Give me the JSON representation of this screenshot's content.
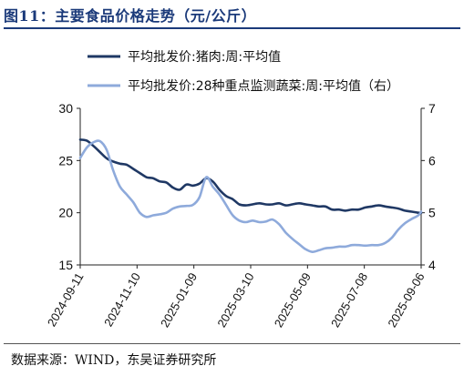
{
  "header": {
    "title": "图11：主要食品价格走势（元/公斤）"
  },
  "footer": {
    "source": "数据来源：WIND，东吴证券研究所"
  },
  "chart_data": {
    "type": "line",
    "x_tick_labels": [
      "2024-09-11",
      "2024-11-10",
      "2025-01-09",
      "2025-03-10",
      "2025-05-09",
      "2025-07-08",
      "2025-09-06"
    ],
    "x_start": "2024-09-11",
    "x_end": "2025-09-06",
    "y_left": {
      "min": 15,
      "max": 30,
      "ticks": [
        15,
        20,
        25,
        30
      ]
    },
    "y_right": {
      "min": 4,
      "max": 7,
      "ticks": [
        4,
        5,
        6,
        7
      ]
    },
    "legend_position": "top-left",
    "series": [
      {
        "name": "平均批发价:猪肉:周:平均值",
        "axis": "left",
        "color": "#1f3864",
        "points": [
          [
            "2024-09-11",
            27.0
          ],
          [
            "2024-09-18",
            26.9
          ],
          [
            "2024-09-25",
            26.4
          ],
          [
            "2024-10-02",
            25.8
          ],
          [
            "2024-10-09",
            25.2
          ],
          [
            "2024-10-16",
            24.9
          ],
          [
            "2024-10-23",
            24.7
          ],
          [
            "2024-10-30",
            24.6
          ],
          [
            "2024-11-06",
            24.2
          ],
          [
            "2024-11-13",
            23.8
          ],
          [
            "2024-11-20",
            23.4
          ],
          [
            "2024-11-27",
            23.3
          ],
          [
            "2024-12-04",
            23.0
          ],
          [
            "2024-12-11",
            22.9
          ],
          [
            "2024-12-18",
            22.4
          ],
          [
            "2024-12-25",
            22.2
          ],
          [
            "2025-01-01",
            22.7
          ],
          [
            "2025-01-08",
            22.6
          ],
          [
            "2025-01-15",
            22.8
          ],
          [
            "2025-01-22",
            23.3
          ],
          [
            "2025-01-29",
            23.0
          ],
          [
            "2025-02-05",
            22.2
          ],
          [
            "2025-02-12",
            21.6
          ],
          [
            "2025-02-19",
            21.3
          ],
          [
            "2025-02-26",
            20.8
          ],
          [
            "2025-03-05",
            20.7
          ],
          [
            "2025-03-12",
            20.8
          ],
          [
            "2025-03-19",
            20.9
          ],
          [
            "2025-03-26",
            20.8
          ],
          [
            "2025-04-02",
            20.8
          ],
          [
            "2025-04-09",
            20.9
          ],
          [
            "2025-04-16",
            20.7
          ],
          [
            "2025-04-23",
            20.8
          ],
          [
            "2025-04-30",
            20.9
          ],
          [
            "2025-05-07",
            20.8
          ],
          [
            "2025-05-14",
            20.7
          ],
          [
            "2025-05-21",
            20.6
          ],
          [
            "2025-05-28",
            20.6
          ],
          [
            "2025-06-04",
            20.3
          ],
          [
            "2025-06-11",
            20.3
          ],
          [
            "2025-06-18",
            20.2
          ],
          [
            "2025-06-25",
            20.3
          ],
          [
            "2025-07-02",
            20.3
          ],
          [
            "2025-07-09",
            20.5
          ],
          [
            "2025-07-16",
            20.6
          ],
          [
            "2025-07-23",
            20.7
          ],
          [
            "2025-07-30",
            20.6
          ],
          [
            "2025-08-06",
            20.5
          ],
          [
            "2025-08-13",
            20.4
          ],
          [
            "2025-08-20",
            20.2
          ],
          [
            "2025-08-27",
            20.1
          ],
          [
            "2025-09-03",
            20.0
          ],
          [
            "2025-09-06",
            20.0
          ]
        ]
      },
      {
        "name": "平均批发价:28种重点监测蔬菜:周:平均值（右）",
        "axis": "right",
        "color": "#8eaadb",
        "points": [
          [
            "2024-09-11",
            6.05
          ],
          [
            "2024-09-18",
            6.25
          ],
          [
            "2024-09-25",
            6.35
          ],
          [
            "2024-10-02",
            6.37
          ],
          [
            "2024-10-09",
            6.2
          ],
          [
            "2024-10-16",
            5.8
          ],
          [
            "2024-10-23",
            5.5
          ],
          [
            "2024-10-30",
            5.35
          ],
          [
            "2024-11-06",
            5.2
          ],
          [
            "2024-11-13",
            5.0
          ],
          [
            "2024-11-20",
            4.92
          ],
          [
            "2024-11-27",
            4.95
          ],
          [
            "2024-12-04",
            4.97
          ],
          [
            "2024-12-11",
            5.0
          ],
          [
            "2024-12-18",
            5.08
          ],
          [
            "2024-12-25",
            5.12
          ],
          [
            "2025-01-01",
            5.13
          ],
          [
            "2025-01-08",
            5.15
          ],
          [
            "2025-01-15",
            5.3
          ],
          [
            "2025-01-22",
            5.68
          ],
          [
            "2025-01-29",
            5.5
          ],
          [
            "2025-02-05",
            5.35
          ],
          [
            "2025-02-12",
            5.15
          ],
          [
            "2025-02-19",
            4.95
          ],
          [
            "2025-02-26",
            4.85
          ],
          [
            "2025-03-05",
            4.82
          ],
          [
            "2025-03-12",
            4.85
          ],
          [
            "2025-03-19",
            4.82
          ],
          [
            "2025-03-26",
            4.83
          ],
          [
            "2025-04-02",
            4.87
          ],
          [
            "2025-04-09",
            4.78
          ],
          [
            "2025-04-16",
            4.62
          ],
          [
            "2025-04-23",
            4.5
          ],
          [
            "2025-04-30",
            4.4
          ],
          [
            "2025-05-07",
            4.3
          ],
          [
            "2025-05-14",
            4.25
          ],
          [
            "2025-05-21",
            4.28
          ],
          [
            "2025-05-28",
            4.32
          ],
          [
            "2025-06-04",
            4.33
          ],
          [
            "2025-06-11",
            4.35
          ],
          [
            "2025-06-18",
            4.35
          ],
          [
            "2025-06-25",
            4.38
          ],
          [
            "2025-07-02",
            4.38
          ],
          [
            "2025-07-09",
            4.37
          ],
          [
            "2025-07-16",
            4.38
          ],
          [
            "2025-07-23",
            4.38
          ],
          [
            "2025-07-30",
            4.42
          ],
          [
            "2025-08-06",
            4.52
          ],
          [
            "2025-08-13",
            4.68
          ],
          [
            "2025-08-20",
            4.8
          ],
          [
            "2025-08-27",
            4.88
          ],
          [
            "2025-09-03",
            4.95
          ],
          [
            "2025-09-06",
            5.02
          ]
        ]
      }
    ]
  }
}
